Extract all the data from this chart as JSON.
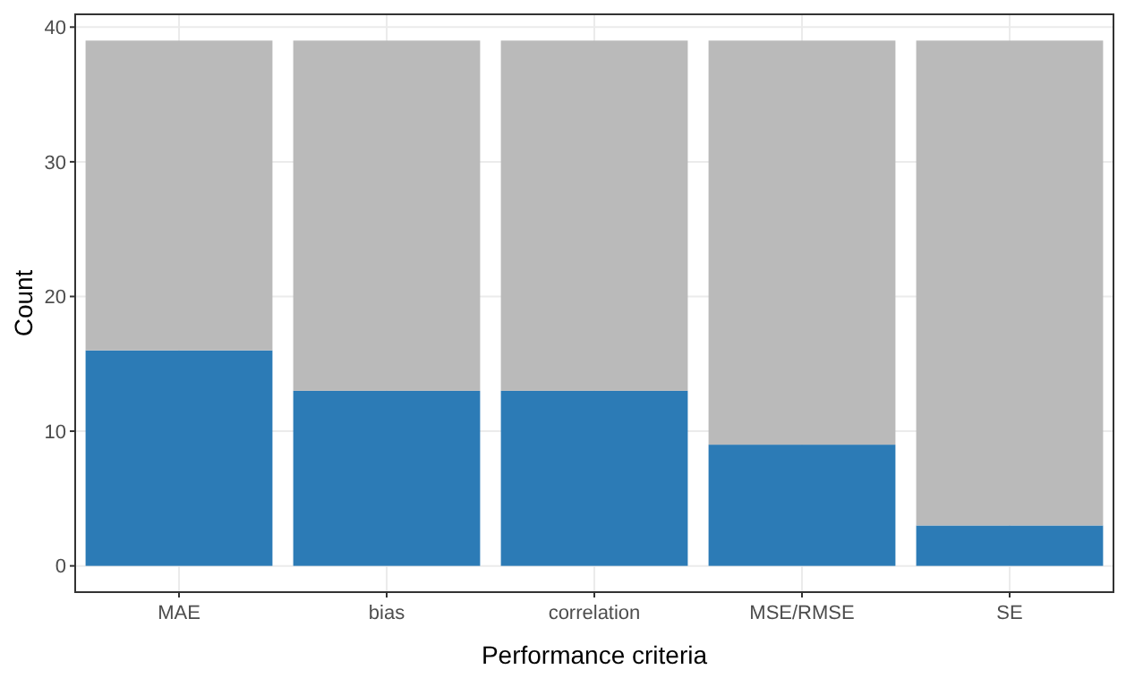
{
  "chart_data": {
    "type": "bar",
    "xlabel": "Performance criteria",
    "ylabel": "Count",
    "categories": [
      "MAE",
      "bias",
      "correlation",
      "MSE/RMSE",
      "SE"
    ],
    "series": [
      {
        "color": "#2c7bb6",
        "values": [
          16,
          13,
          13,
          9,
          3
        ]
      },
      {
        "color": "#bababa",
        "values": [
          23,
          26,
          26,
          30,
          36
        ]
      }
    ],
    "stacked": true,
    "ylim": [
      -1.95,
      40.95
    ],
    "yticks": [
      0,
      10,
      20,
      30,
      40
    ],
    "grid": true
  }
}
